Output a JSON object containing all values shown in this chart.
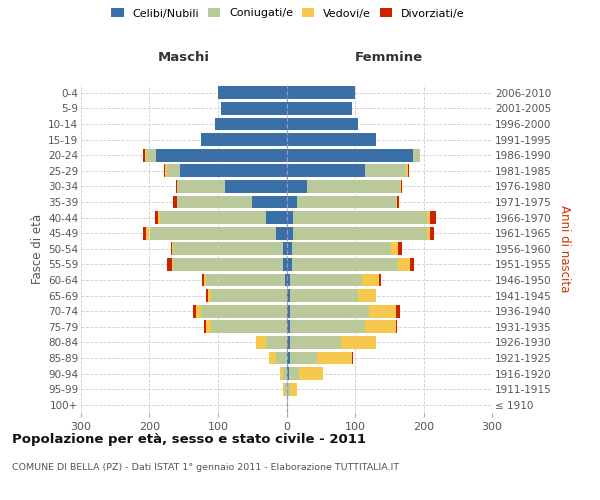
{
  "age_groups": [
    "100+",
    "95-99",
    "90-94",
    "85-89",
    "80-84",
    "75-79",
    "70-74",
    "65-69",
    "60-64",
    "55-59",
    "50-54",
    "45-49",
    "40-44",
    "35-39",
    "30-34",
    "25-29",
    "20-24",
    "15-19",
    "10-14",
    "5-9",
    "0-4"
  ],
  "birth_years": [
    "≤ 1910",
    "1911-1915",
    "1916-1920",
    "1921-1925",
    "1926-1930",
    "1931-1935",
    "1936-1940",
    "1941-1945",
    "1946-1950",
    "1951-1955",
    "1956-1960",
    "1961-1965",
    "1966-1970",
    "1971-1975",
    "1976-1980",
    "1981-1985",
    "1986-1990",
    "1991-1995",
    "1996-2000",
    "2001-2005",
    "2006-2010"
  ],
  "colors": {
    "celibe": "#3A6FA8",
    "coniugato": "#BAC99A",
    "vedovo": "#F6C94E",
    "divorziato": "#CC2200"
  },
  "male_celibe": [
    0,
    0,
    0,
    0,
    0,
    0,
    0,
    0,
    2,
    5,
    5,
    15,
    30,
    50,
    90,
    155,
    190,
    125,
    105,
    95,
    100
  ],
  "male_coniugato": [
    0,
    2,
    5,
    15,
    30,
    110,
    125,
    110,
    115,
    160,
    160,
    185,
    155,
    110,
    70,
    20,
    15,
    0,
    0,
    0,
    0
  ],
  "male_vedovo": [
    0,
    3,
    5,
    10,
    15,
    8,
    7,
    5,
    3,
    2,
    2,
    5,
    2,
    0,
    0,
    2,
    2,
    0,
    0,
    0,
    0
  ],
  "male_divorziato": [
    0,
    0,
    0,
    0,
    0,
    3,
    5,
    3,
    3,
    8,
    2,
    5,
    5,
    5,
    2,
    2,
    2,
    0,
    0,
    0,
    0
  ],
  "fem_nubile": [
    0,
    0,
    3,
    5,
    5,
    5,
    5,
    5,
    5,
    8,
    8,
    10,
    10,
    15,
    30,
    115,
    185,
    130,
    105,
    95,
    100
  ],
  "fem_coniugata": [
    2,
    5,
    15,
    40,
    75,
    110,
    115,
    100,
    105,
    155,
    145,
    195,
    195,
    145,
    135,
    60,
    10,
    0,
    0,
    0,
    0
  ],
  "fem_vedova": [
    0,
    10,
    35,
    50,
    50,
    45,
    40,
    25,
    25,
    18,
    10,
    5,
    5,
    2,
    2,
    2,
    0,
    0,
    0,
    0,
    0
  ],
  "fem_divorziata": [
    0,
    0,
    0,
    2,
    0,
    2,
    5,
    0,
    3,
    5,
    5,
    5,
    8,
    2,
    2,
    2,
    0,
    0,
    0,
    0,
    0
  ],
  "xlim": 300,
  "xticks": [
    -300,
    -200,
    -100,
    0,
    100,
    200,
    300
  ],
  "xtick_labels": [
    "300",
    "200",
    "100",
    "0",
    "100",
    "200",
    "300"
  ],
  "title": "Popolazione per età, sesso e stato civile - 2011",
  "subtitle": "COMUNE DI BELLA (PZ) - Dati ISTAT 1° gennaio 2011 - Elaborazione TUTTITALIA.IT",
  "ylabel_left": "Fasce di età",
  "ylabel_right": "Anni di nascita",
  "maschi_label": "Maschi",
  "femmine_label": "Femmine",
  "legend_labels": [
    "Celibi/Nubili",
    "Coniugati/e",
    "Vedovi/e",
    "Divorziati/e"
  ],
  "bg_color": "#ffffff",
  "grid_color": "#cccccc",
  "text_color": "#555555",
  "title_color": "#111111",
  "center_line_color": "#9999bb"
}
